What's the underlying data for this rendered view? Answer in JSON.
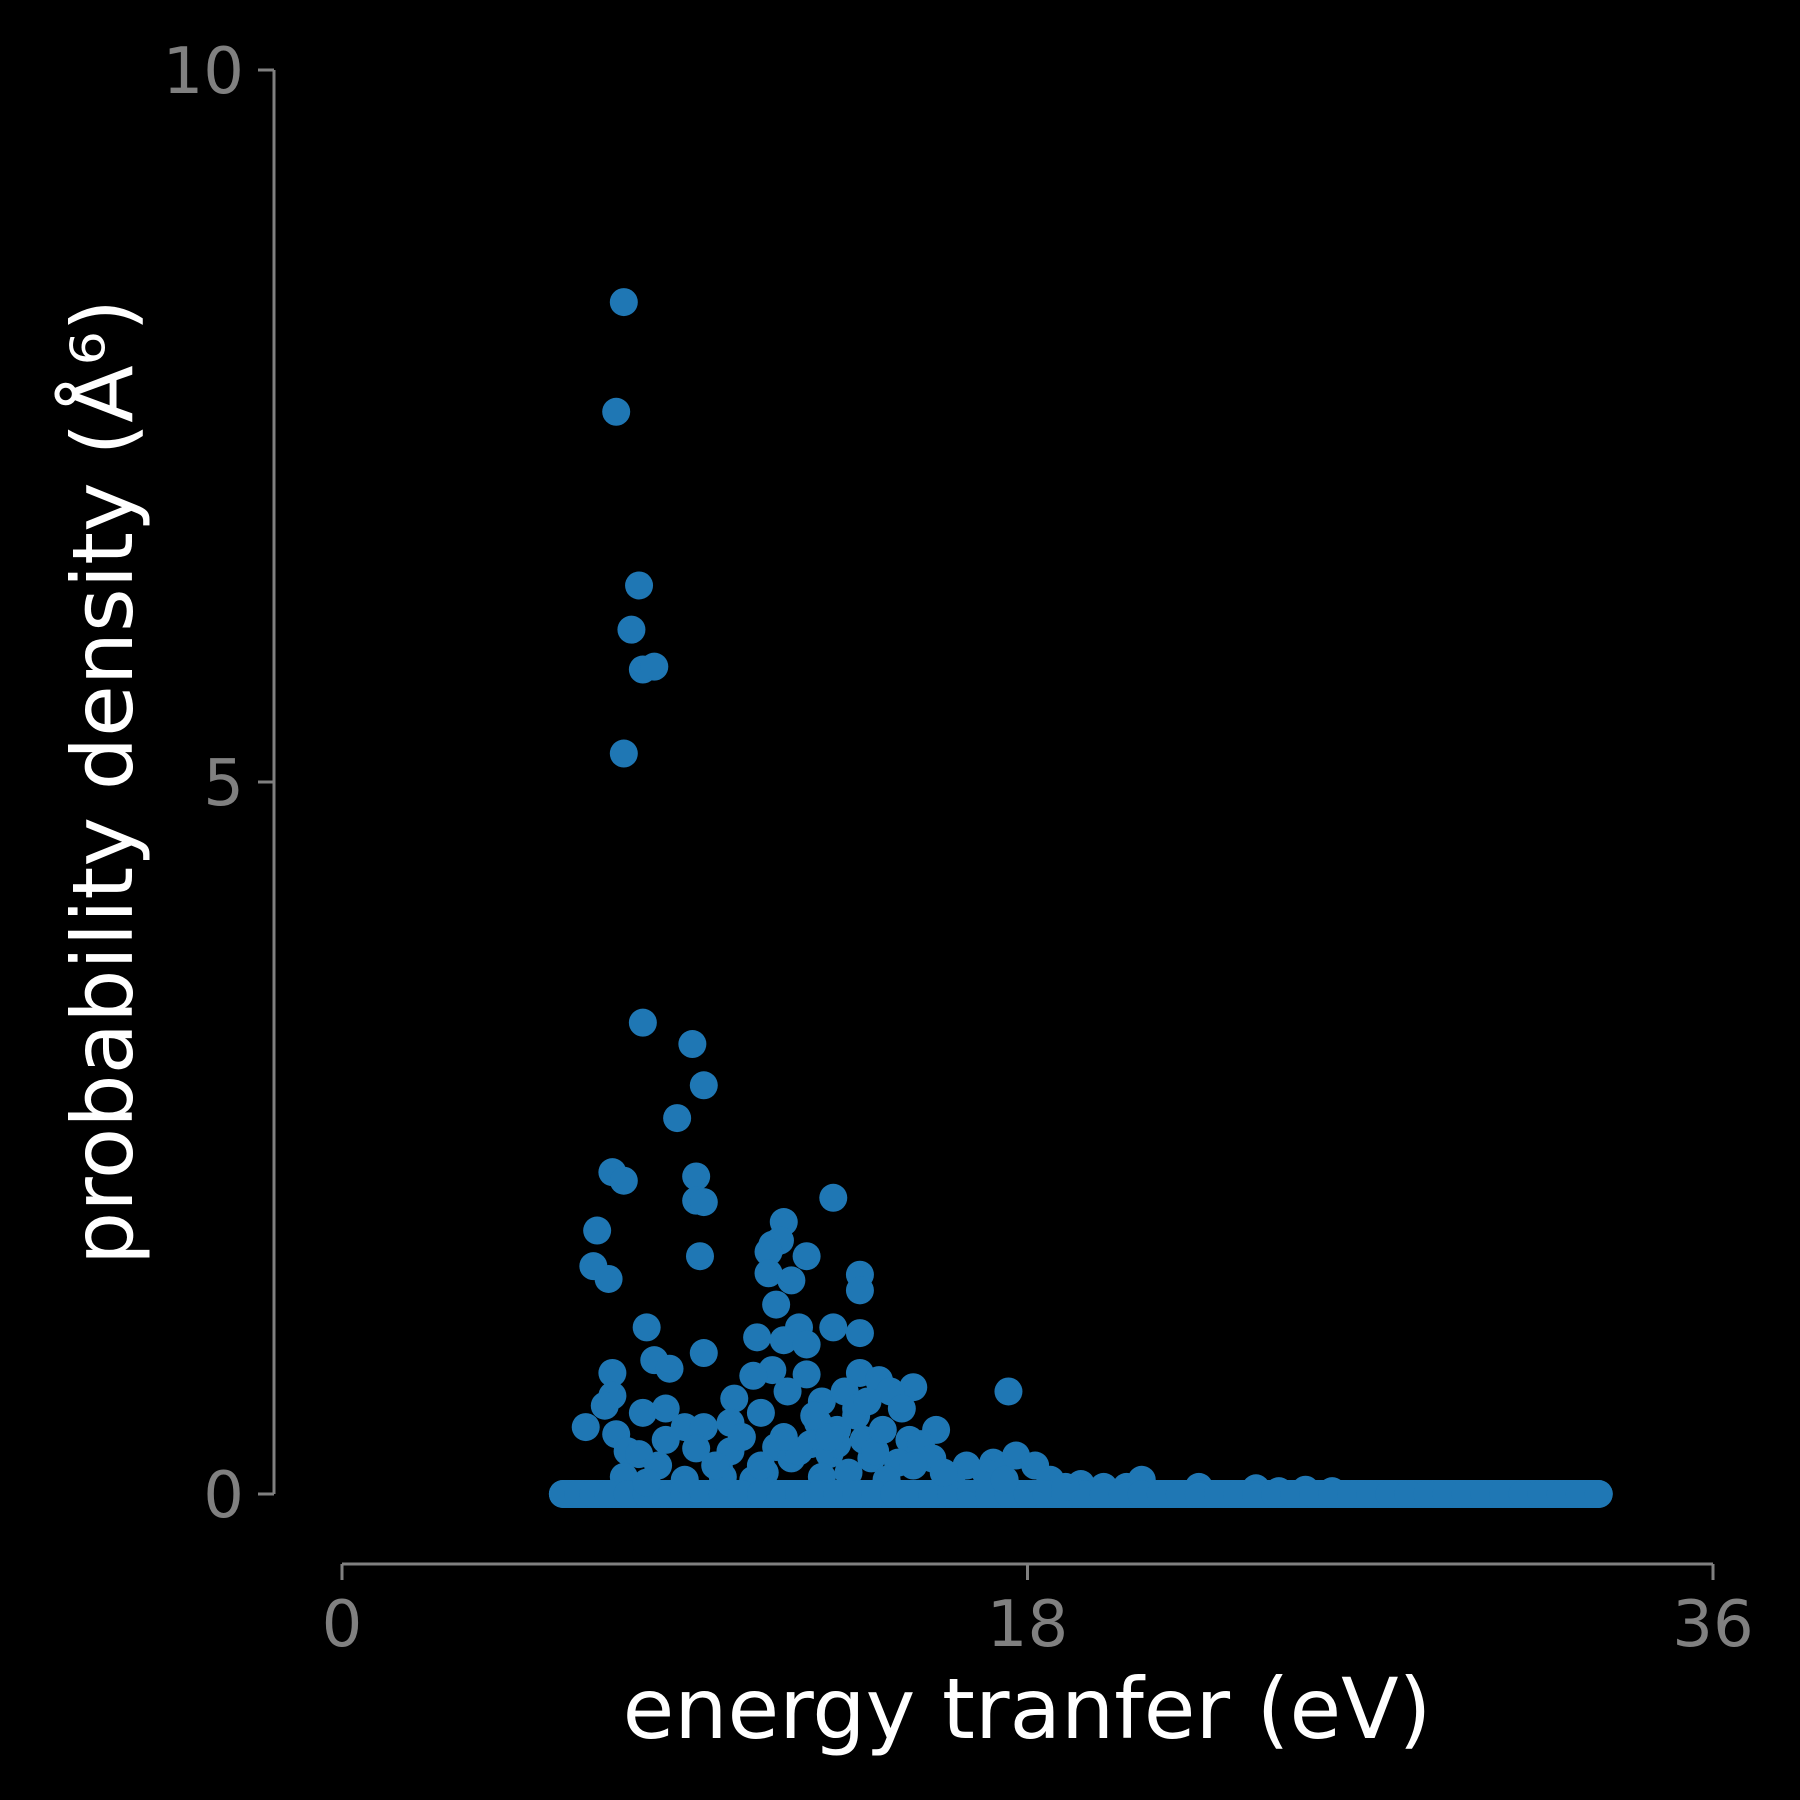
{
  "chart_data": {
    "type": "scatter",
    "title": "",
    "xlabel": "energy tranfer (eV)",
    "ylabel": "probability density (Å⁶)",
    "xlim": [
      0,
      36
    ],
    "ylim": [
      0,
      10
    ],
    "xticks": [
      0,
      18,
      36
    ],
    "yticks": [
      0,
      5,
      10
    ],
    "xtick_labels": [
      "0",
      "18",
      "36"
    ],
    "ytick_labels": [
      "0",
      "5",
      "10"
    ],
    "grid": false,
    "legend": "none",
    "colors": {
      "background": "#000000",
      "marker": "#1f77b4",
      "axis": "#808080",
      "label": "#ffffff"
    },
    "series": [
      {
        "color": "#1f77b4",
        "points": [
          [
            7.4,
            8.37
          ],
          [
            7.2,
            7.6
          ],
          [
            7.8,
            6.38
          ],
          [
            7.6,
            6.07
          ],
          [
            7.9,
            5.79
          ],
          [
            8.2,
            5.81
          ],
          [
            7.4,
            5.2
          ],
          [
            7.9,
            3.31
          ],
          [
            9.2,
            3.16
          ],
          [
            9.5,
            2.87
          ],
          [
            8.8,
            2.64
          ],
          [
            7.1,
            2.26
          ],
          [
            7.4,
            2.2
          ],
          [
            9.3,
            2.23
          ],
          [
            9.3,
            2.06
          ],
          [
            9.5,
            2.05
          ],
          [
            12.9,
            2.08
          ],
          [
            11.6,
            1.91
          ],
          [
            6.7,
            1.85
          ],
          [
            11.3,
            1.75
          ],
          [
            11.5,
            1.78
          ],
          [
            11.2,
            1.7
          ],
          [
            12.2,
            1.67
          ],
          [
            6.6,
            1.6
          ],
          [
            7.0,
            1.51
          ],
          [
            9.4,
            1.67
          ],
          [
            11.2,
            1.55
          ],
          [
            11.8,
            1.5
          ],
          [
            13.6,
            1.54
          ],
          [
            13.6,
            1.43
          ],
          [
            11.4,
            1.33
          ],
          [
            8.0,
            1.17
          ],
          [
            12.0,
            1.17
          ],
          [
            12.9,
            1.17
          ],
          [
            13.6,
            1.13
          ],
          [
            10.9,
            1.1
          ],
          [
            11.6,
            1.08
          ],
          [
            12.2,
            1.05
          ],
          [
            9.5,
            0.99
          ],
          [
            8.2,
            0.94
          ],
          [
            8.6,
            0.88
          ],
          [
            7.1,
            0.85
          ],
          [
            12.2,
            0.84
          ],
          [
            11.3,
            0.87
          ],
          [
            10.8,
            0.83
          ],
          [
            13.6,
            0.85
          ],
          [
            14.1,
            0.8
          ],
          [
            15.0,
            0.75
          ],
          [
            17.5,
            0.72
          ],
          [
            7.1,
            0.69
          ],
          [
            10.3,
            0.67
          ],
          [
            6.9,
            0.62
          ],
          [
            11.7,
            0.72
          ],
          [
            12.6,
            0.65
          ],
          [
            13.2,
            0.72
          ],
          [
            14.4,
            0.72
          ],
          [
            8.5,
            0.6
          ],
          [
            7.9,
            0.57
          ],
          [
            11.0,
            0.57
          ],
          [
            13.5,
            0.55
          ],
          [
            14.7,
            0.6
          ],
          [
            15.6,
            0.45
          ],
          [
            6.4,
            0.47
          ],
          [
            9.0,
            0.47
          ],
          [
            9.5,
            0.47
          ],
          [
            10.2,
            0.5
          ],
          [
            12.5,
            0.5
          ],
          [
            13.0,
            0.45
          ],
          [
            7.2,
            0.42
          ],
          [
            8.5,
            0.38
          ],
          [
            11.4,
            0.33
          ],
          [
            12.3,
            0.35
          ],
          [
            13.7,
            0.38
          ],
          [
            14.9,
            0.38
          ],
          [
            15.2,
            0.35
          ],
          [
            7.5,
            0.3
          ],
          [
            7.8,
            0.28
          ],
          [
            9.3,
            0.32
          ],
          [
            10.2,
            0.3
          ],
          [
            11.8,
            0.25
          ],
          [
            12.8,
            0.28
          ],
          [
            13.9,
            0.25
          ],
          [
            14.6,
            0.22
          ],
          [
            15.5,
            0.25
          ],
          [
            16.4,
            0.2
          ],
          [
            17.1,
            0.22
          ],
          [
            17.7,
            0.27
          ],
          [
            18.2,
            0.2
          ],
          [
            16.9,
            0.15
          ],
          [
            8.3,
            0.2
          ],
          [
            9.9,
            0.18
          ],
          [
            11.1,
            0.15
          ],
          [
            13.3,
            0.15
          ],
          [
            7.4,
            0.12
          ],
          [
            10.8,
            0.1
          ],
          [
            12.6,
            0.12
          ],
          [
            14.3,
            0.1
          ],
          [
            16.0,
            0.1
          ],
          [
            18.6,
            0.1
          ],
          [
            19.4,
            0.07
          ],
          [
            20.0,
            0.05
          ],
          [
            20.6,
            0.05
          ],
          [
            21.0,
            0.1
          ],
          [
            22.5,
            0.05
          ],
          [
            24.0,
            0.04
          ],
          [
            25.3,
            0.03
          ],
          [
            26.0,
            0.02
          ],
          [
            24.6,
            0.02
          ],
          [
            5.8,
            0.0
          ],
          [
            6.2,
            0.0
          ],
          [
            6.6,
            0.0
          ],
          [
            7.0,
            0.0
          ],
          [
            7.5,
            0.0
          ],
          [
            8.0,
            0.0
          ],
          [
            8.5,
            0.0
          ],
          [
            9.0,
            0.0
          ],
          [
            9.5,
            0.0
          ],
          [
            10.0,
            0.0
          ],
          [
            10.5,
            0.0
          ],
          [
            11.0,
            0.0
          ],
          [
            11.5,
            0.0
          ],
          [
            12.0,
            0.0
          ],
          [
            12.5,
            0.0
          ],
          [
            13.0,
            0.0
          ],
          [
            13.5,
            0.0
          ],
          [
            14.0,
            0.0
          ],
          [
            14.5,
            0.0
          ],
          [
            15.0,
            0.0
          ],
          [
            15.5,
            0.0
          ],
          [
            16.0,
            0.0
          ],
          [
            16.5,
            0.0
          ],
          [
            17.0,
            0.0
          ],
          [
            17.5,
            0.0
          ],
          [
            18.0,
            0.0
          ],
          [
            18.5,
            0.0
          ],
          [
            19.0,
            0.0
          ],
          [
            19.5,
            0.0
          ],
          [
            20.0,
            0.0
          ],
          [
            20.5,
            0.0
          ],
          [
            21.0,
            0.0
          ],
          [
            21.5,
            0.0
          ],
          [
            22.0,
            0.0
          ],
          [
            22.5,
            0.0
          ],
          [
            23.0,
            0.0
          ],
          [
            23.5,
            0.0
          ],
          [
            24.0,
            0.0
          ],
          [
            24.5,
            0.0
          ],
          [
            25.0,
            0.0
          ],
          [
            25.5,
            0.0
          ],
          [
            26.0,
            0.0
          ],
          [
            26.5,
            0.0
          ],
          [
            27.0,
            0.0
          ],
          [
            27.5,
            0.0
          ],
          [
            28.0,
            0.0
          ],
          [
            28.5,
            0.0
          ],
          [
            29.0,
            0.0
          ],
          [
            29.5,
            0.0
          ],
          [
            30.0,
            0.0
          ],
          [
            30.5,
            0.0
          ],
          [
            31.0,
            0.0
          ],
          [
            31.5,
            0.0
          ],
          [
            32.0,
            0.0
          ],
          [
            32.5,
            0.0
          ],
          [
            33.0,
            0.0
          ],
          [
            8.0,
            0.08
          ],
          [
            9.0,
            0.1
          ],
          [
            10.0,
            0.12
          ],
          [
            11.0,
            0.2
          ],
          [
            12.0,
            0.3
          ],
          [
            13.0,
            0.35
          ],
          [
            14.0,
            0.3
          ],
          [
            15.0,
            0.2
          ],
          [
            13.5,
            0.6
          ],
          [
            12.8,
            0.4
          ],
          [
            14.2,
            0.45
          ],
          [
            10.5,
            0.4
          ],
          [
            9.8,
            0.2
          ],
          [
            11.6,
            0.4
          ],
          [
            12.4,
            0.55
          ],
          [
            13.8,
            0.65
          ],
          [
            15.8,
            0.15
          ],
          [
            17.4,
            0.1
          ],
          [
            19.0,
            0.05
          ]
        ]
      }
    ]
  }
}
